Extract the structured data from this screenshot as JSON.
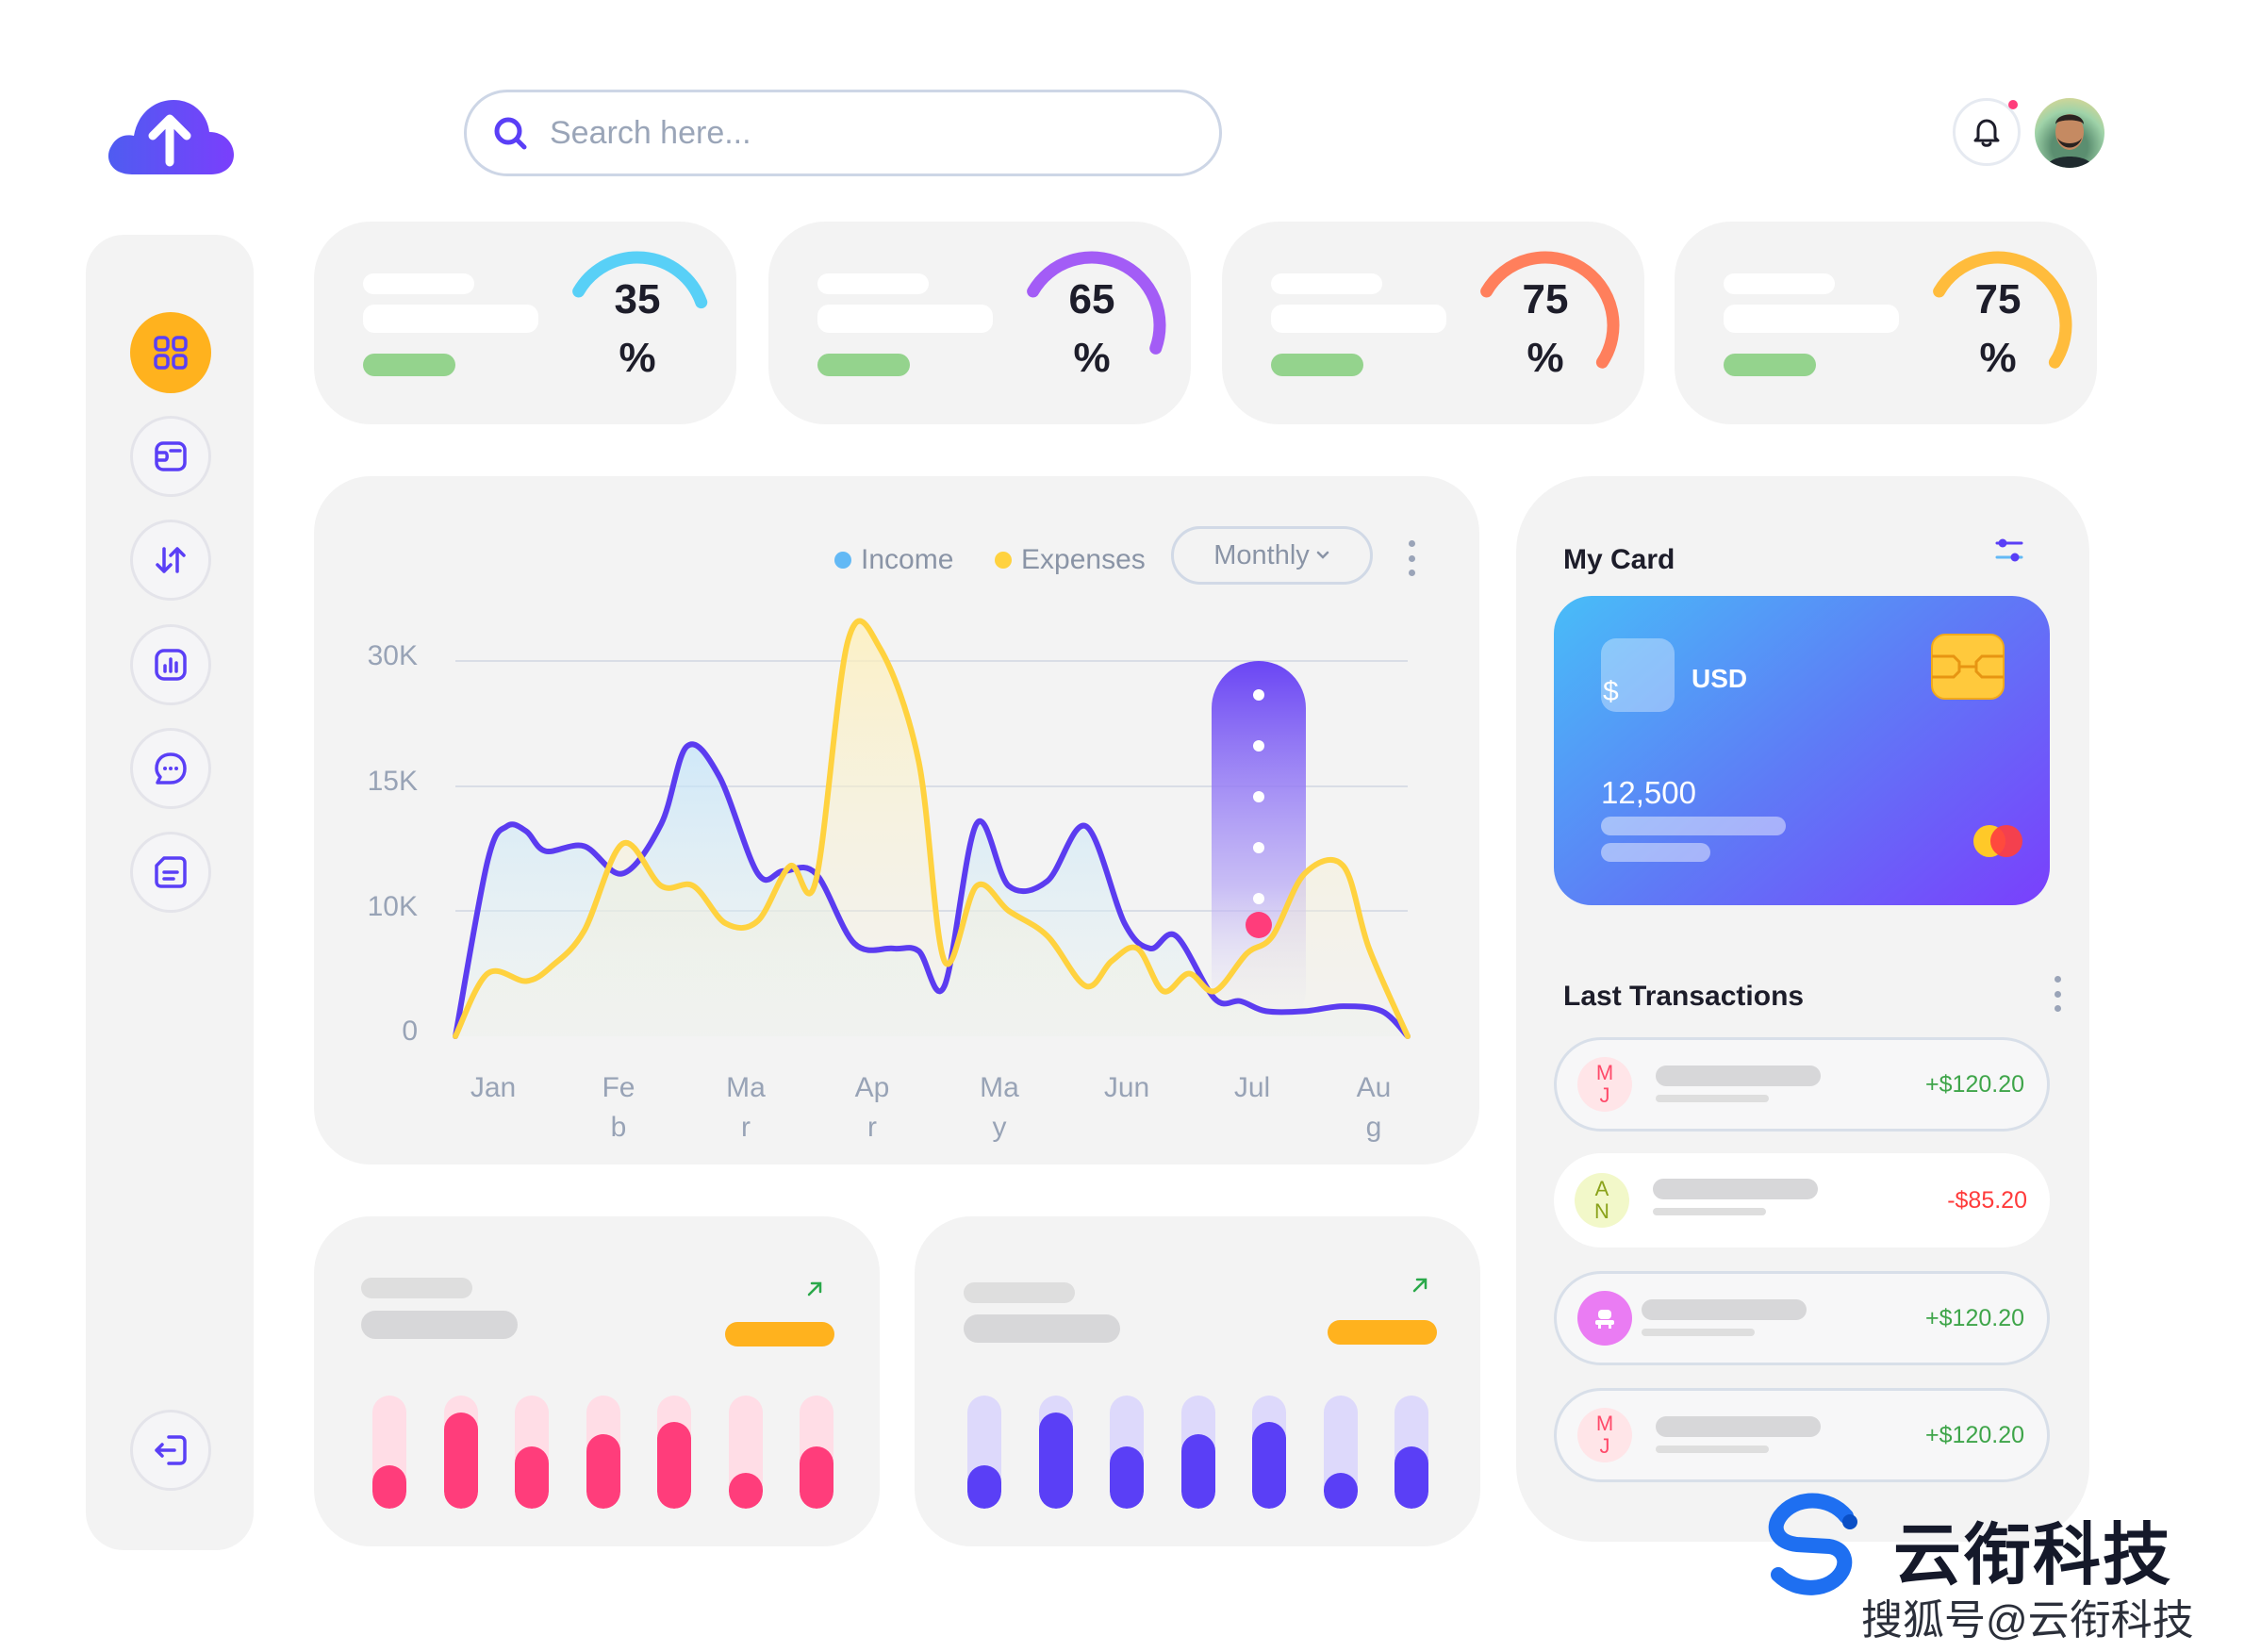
{
  "search": {
    "placeholder": "Search here..."
  },
  "colors": {
    "accent": "#5a3ff6",
    "orange": "#ffb21e",
    "pink": "#ff3d7b",
    "green": "#94d38d",
    "income": "#5b3cf0",
    "expenses": "#ffd23f"
  },
  "stats": [
    {
      "value": "35",
      "unit": "%",
      "progress": 0.35,
      "color": "#58d0f7"
    },
    {
      "value": "65",
      "unit": "%",
      "progress": 0.65,
      "color": "#a35cf6"
    },
    {
      "value": "75",
      "unit": "%",
      "progress": 0.75,
      "color": "#ff7f5c"
    },
    {
      "value": "75",
      "unit": "%",
      "progress": 0.75,
      "color": "#ffbc3c"
    }
  ],
  "chart": {
    "legend": {
      "income": "Income",
      "expenses": "Expenses"
    },
    "period": "Monthly"
  },
  "chart_data": {
    "type": "area",
    "categories": [
      "Jan",
      "Feb",
      "Mar",
      "Apr",
      "May",
      "Jun",
      "Jul",
      "Aug"
    ],
    "category_labels": [
      [
        "Jan",
        ""
      ],
      [
        "Fe",
        "b"
      ],
      [
        "Ma",
        "r"
      ],
      [
        "Ap",
        "r"
      ],
      [
        "Ma",
        "y"
      ],
      [
        "Jun",
        ""
      ],
      [
        "Jul",
        ""
      ],
      [
        "Au",
        "g"
      ]
    ],
    "y_tick_labels": [
      "30K",
      "15K",
      "10K",
      "0"
    ],
    "grid": true,
    "legend_position": "top-right",
    "series": [
      {
        "name": "Income",
        "color": "#5b3cf0",
        "x": [
          0,
          0.25,
          0.4,
          0.55,
          0.7,
          1.0,
          1.3,
          1.6,
          1.8,
          2.05,
          2.35,
          2.55,
          2.8,
          3.1,
          3.4,
          3.6,
          3.8,
          4.05,
          4.3,
          4.6,
          4.9,
          5.2,
          5.4,
          5.6,
          5.9,
          6.1,
          6.3,
          6.6,
          6.9,
          7.2,
          7.4
        ],
        "y": [
          0,
          7,
          8.4,
          8.2,
          7.4,
          7.6,
          6.5,
          8.5,
          11.6,
          10.4,
          6.5,
          6.6,
          6.5,
          3.7,
          3.5,
          3.4,
          2.0,
          8.5,
          6.0,
          6.2,
          8.4,
          4.5,
          3.5,
          4.0,
          1.5,
          1.4,
          1.0,
          1.0,
          1.2,
          1.0,
          0
        ]
      },
      {
        "name": "Expenses",
        "color": "#ffd23f",
        "x": [
          0,
          0.25,
          0.55,
          0.75,
          1.0,
          1.3,
          1.6,
          1.85,
          2.1,
          2.35,
          2.6,
          2.8,
          3.05,
          3.3,
          3.6,
          3.8,
          4.05,
          4.3,
          4.6,
          4.9,
          5.1,
          5.3,
          5.5,
          5.7,
          5.9,
          6.15,
          6.35,
          6.6,
          6.9,
          7.1,
          7.4
        ],
        "y": [
          0,
          2.5,
          2.2,
          2.8,
          4.2,
          7.7,
          6.0,
          6.0,
          4.5,
          4.6,
          6.8,
          6.2,
          15.8,
          15.5,
          11.0,
          3.0,
          6.0,
          5.0,
          4.0,
          2.0,
          3.0,
          3.5,
          1.8,
          2.5,
          1.8,
          3.3,
          4.0,
          6.5,
          6.8,
          3.5,
          0
        ]
      }
    ],
    "highlight": {
      "category": "Jul"
    }
  },
  "mycard": {
    "title": "My Card",
    "currency_symbol": "$",
    "currency": "USD",
    "balance": "12,500"
  },
  "transactions": {
    "title": "Last Transactions",
    "items": [
      {
        "initials": [
          "M",
          "J"
        ],
        "amount": "+$120.20",
        "amount_color": "#3fa54a",
        "avatar_bg": "#ffe5e8",
        "avatar_fg": "#ff4a6a"
      },
      {
        "initials": [
          "A",
          "N"
        ],
        "amount": "-$85.20",
        "amount_color": "#ff3b3b",
        "avatar_bg": "#f2f8c9",
        "avatar_fg": "#8aa21a"
      },
      {
        "initials": [],
        "icon": "user-icon",
        "amount": "+$120.20",
        "amount_color": "#3fa54a",
        "avatar_bg": "#ea7cf3",
        "avatar_fg": "#ffffff"
      },
      {
        "initials": [
          "M",
          "J"
        ],
        "amount": "+$120.20",
        "amount_color": "#3fa54a",
        "avatar_bg": "#ffe5e8",
        "avatar_fg": "#ff4a6a"
      }
    ]
  },
  "mini_cards": [
    {
      "bar_color": "#ff3d7b",
      "bg_color": "#ffdde6",
      "levels": [
        0.38,
        0.85,
        0.55,
        0.66,
        0.77,
        0.32,
        0.55
      ]
    },
    {
      "bar_color": "#5a3ff6",
      "bg_color": "#ddd9fb",
      "levels": [
        0.38,
        0.85,
        0.55,
        0.66,
        0.77,
        0.32,
        0.55
      ]
    }
  ],
  "watermark": {
    "brand": "云衔科技",
    "sub": "搜狐号@云衔科技"
  }
}
